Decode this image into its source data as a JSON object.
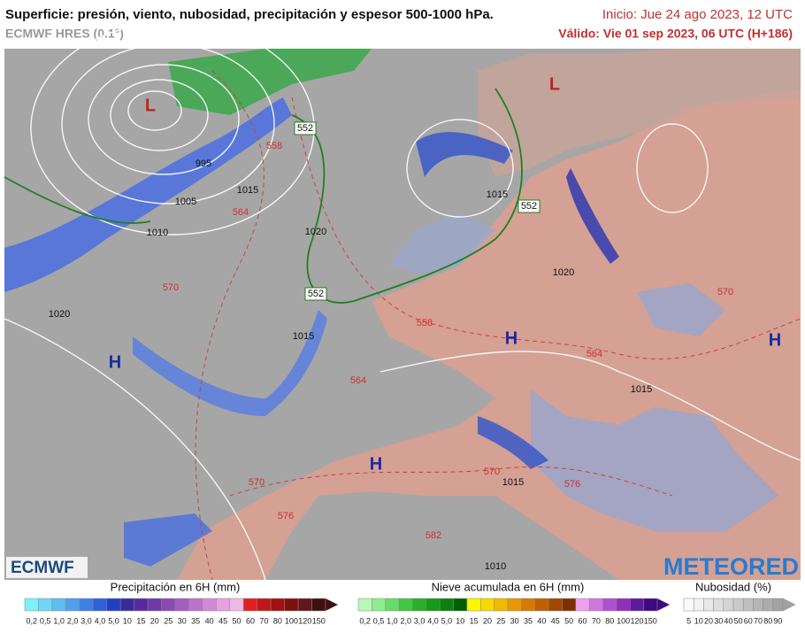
{
  "header": {
    "title": "Superficie: presión, viento, nubosidad, precipitación y espesor 500-1000 hPa.",
    "model": "ECMWF HRES (0.1°)",
    "init": "Inicio: Jue 24 ago 2023, 12 UTC",
    "valid": "Válido: Vie 01 sep 2023, 06 UTC (H+186)"
  },
  "map": {
    "pressure_centers": [
      "L",
      "L",
      "H",
      "H",
      "H",
      "H"
    ],
    "isobar_labels": [
      "1010",
      "1005",
      "1015",
      "995",
      "1020",
      "1020",
      "1015",
      "1015",
      "1020",
      "1015",
      "1015",
      "1010"
    ],
    "thickness_labels": [
      "558",
      "564",
      "570",
      "558",
      "564",
      "570",
      "576",
      "582",
      "570",
      "576",
      "564",
      "570"
    ],
    "thickness_boxes": [
      "552",
      "552",
      "552"
    ]
  },
  "logos": {
    "left": "ECMWF",
    "right": "METEORED"
  },
  "legends": [
    {
      "title": "Precipitación en 6H (mm)",
      "labels": [
        "0,2",
        "0,5",
        "1,0",
        "2,0",
        "3,0",
        "4,0",
        "5,0",
        "10",
        "15",
        "20",
        "25",
        "30",
        "35",
        "40",
        "45",
        "50",
        "60",
        "70",
        "80",
        "100",
        "120",
        "150"
      ],
      "colors": [
        "#7ff0f8",
        "#6fd6f4",
        "#5fbcf0",
        "#4f9fec",
        "#4080e6",
        "#3060d8",
        "#2040c0",
        "#3a2a9a",
        "#552a9e",
        "#6f3aa8",
        "#8a4ab4",
        "#a45ec0",
        "#bc72cc",
        "#d488d8",
        "#e8a0e0",
        "#f0b8e8",
        "#e02020",
        "#c01818",
        "#a01010",
        "#801010",
        "#601818",
        "#401010"
      ]
    },
    {
      "title": "Nieve acumulada en 6H (mm)",
      "labels": [
        "0,2",
        "0,5",
        "1,0",
        "2,0",
        "3,0",
        "4,0",
        "5,0",
        "10",
        "15",
        "20",
        "25",
        "30",
        "35",
        "40",
        "45",
        "50",
        "60",
        "70",
        "80",
        "100",
        "120",
        "150"
      ],
      "colors": [
        "#b8f8b8",
        "#90ec90",
        "#68dc68",
        "#40c840",
        "#28b028",
        "#189818",
        "#0c800c",
        "#006000",
        "#f8f800",
        "#f8d800",
        "#f0b800",
        "#e89800",
        "#d87800",
        "#c06000",
        "#a04800",
        "#803000",
        "#f0a0f0",
        "#d078e0",
        "#b050d0",
        "#9030b8",
        "#6018a0",
        "#400880"
      ]
    },
    {
      "title": "Nubosidad (%)",
      "labels": [
        "5",
        "10",
        "20",
        "30",
        "40",
        "50",
        "60",
        "70",
        "80",
        "90"
      ],
      "colors": [
        "#fbfbfb",
        "#f2f2f2",
        "#e8e8e8",
        "#dedede",
        "#d4d4d4",
        "#cacaca",
        "#c0c0c0",
        "#b6b6b6",
        "#acacac",
        "#a2a2a2"
      ]
    }
  ]
}
